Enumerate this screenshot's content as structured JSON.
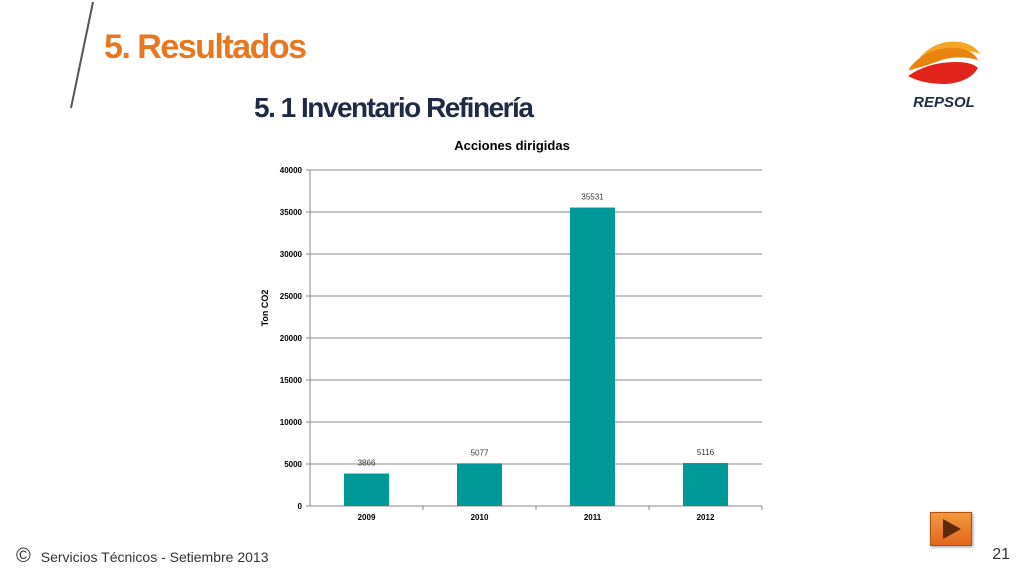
{
  "header": {
    "title": "5.   Resultados",
    "subtitle": "5. 1  Inventario Refinería",
    "logo_text": "REPSOL",
    "accent": "#e87722",
    "subtitle_color": "#1f2a44"
  },
  "chart_data": {
    "type": "bar",
    "title": "Acciones dirigidas",
    "ylabel": "Ton CO2",
    "xlabel": "",
    "categories": [
      "2009",
      "2010",
      "2011",
      "2012"
    ],
    "values": [
      3866,
      5077,
      35531,
      5116
    ],
    "data_labels": [
      "3866",
      "5077",
      "35531",
      "5116"
    ],
    "ylim": [
      0,
      40000
    ],
    "yticks": [
      0,
      5000,
      10000,
      15000,
      20000,
      25000,
      30000,
      35000,
      40000
    ],
    "ytick_labels": [
      "0",
      "5000",
      "10000",
      "15000",
      "20000",
      "25000",
      "30000",
      "35000",
      "40000"
    ],
    "grid": true,
    "legend": "none",
    "bar_color": "#009999"
  },
  "footer": {
    "copyright_symbol": "©",
    "text": "Servicios Técnicos -  Setiembre 2013",
    "page_number": "21",
    "next_icon": "play-arrow-icon"
  }
}
